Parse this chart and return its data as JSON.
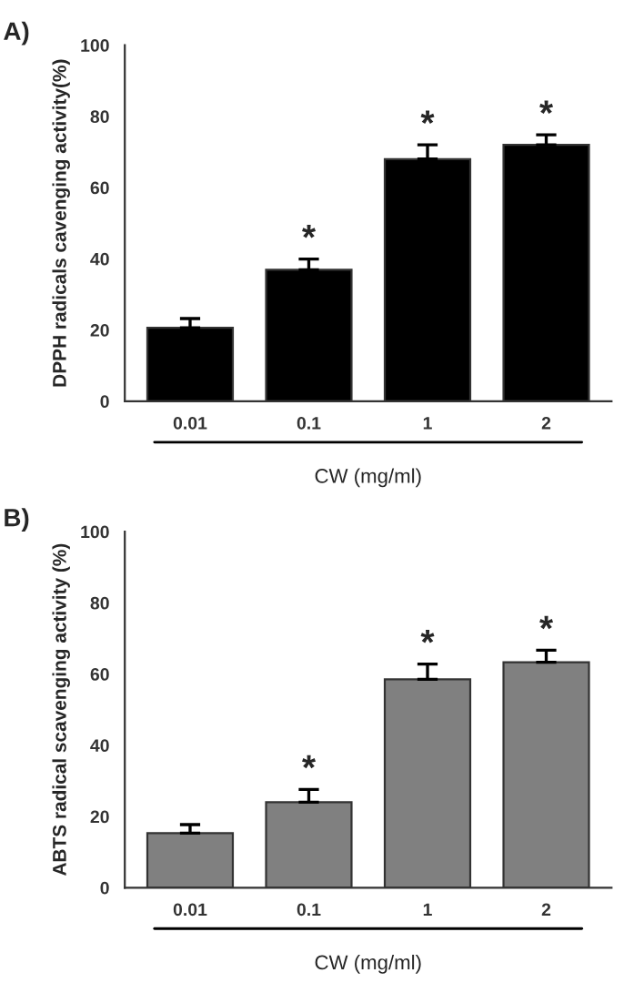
{
  "chart_data": [
    {
      "type": "bar",
      "categories": [
        "0.01",
        "0.1",
        "1",
        "2"
      ],
      "xlabel": "CW (mg/ml)",
      "ylabel": "DPPH radicals cavenging activity(%)",
      "series": [
        {
          "color": "#000000",
          "values": [
            20.6,
            36.9,
            68,
            72
          ],
          "errors": [
            [
              20.6,
              23.2
            ],
            [
              36.9,
              39.9
            ],
            [
              68,
              72
            ],
            [
              72,
              74.8
            ]
          ]
        }
      ],
      "ylim": [
        0,
        100
      ],
      "yticks": [
        0,
        20,
        40,
        60,
        80,
        100
      ],
      "grid": false,
      "legend": false,
      "annotations": [
        "A)",
        {
          "text": "*",
          "x": "0.1",
          "y": 39.9
        },
        {
          "text": "*",
          "x": "1",
          "y": 72
        },
        {
          "text": "*",
          "x": "2",
          "y": 74.8
        }
      ]
    },
    {
      "type": "bar",
      "categories": [
        "0.01",
        "0.1",
        "1",
        "2"
      ],
      "xlabel": "CW (mg/ml)",
      "ylabel": "ABTS radical scavenging activity (%)",
      "series": [
        {
          "color": "#808080",
          "values": [
            15.3,
            24,
            58.5,
            63.3
          ],
          "errors": [
            [
              15.3,
              17.7
            ],
            [
              24,
              27.6
            ],
            [
              58.5,
              62.8
            ],
            [
              63.3,
              66.7
            ]
          ]
        }
      ],
      "ylim": [
        0,
        100
      ],
      "yticks": [
        0,
        20,
        40,
        60,
        80,
        100
      ],
      "grid": false,
      "legend": false,
      "annotations": [
        "B)",
        {
          "text": "*",
          "x": "0.1",
          "y": 27.6
        },
        {
          "text": "*",
          "x": "1",
          "y": 62.8
        },
        {
          "text": "*",
          "x": "2",
          "y": 66.7
        }
      ]
    }
  ]
}
